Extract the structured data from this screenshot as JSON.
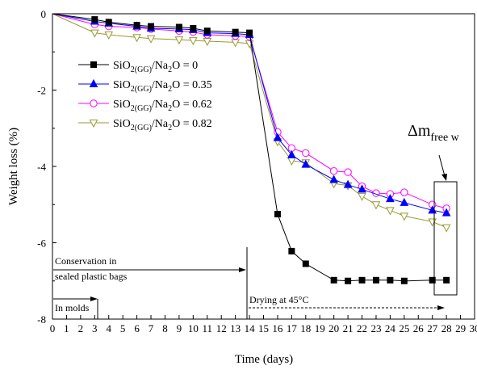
{
  "chart_data": {
    "type": "line",
    "title": "",
    "xlabel": "Time (days)",
    "ylabel": "Weight loss (%)",
    "xlim": [
      0,
      30
    ],
    "ylim": [
      -8,
      0
    ],
    "x_ticks": [
      "0",
      "1",
      "2",
      "3",
      "4",
      "5",
      "6",
      "7",
      "8",
      "9",
      "10",
      "11",
      "12",
      "13",
      "14",
      "15",
      "16",
      "17",
      "18",
      "19",
      "20",
      "21",
      "22",
      "23",
      "24",
      "25",
      "26",
      "27",
      "28",
      "29",
      "30"
    ],
    "y_ticks": [
      "0",
      "-2",
      "-4",
      "-6",
      "-8"
    ],
    "legend_position": "top-left",
    "series": [
      {
        "label_main": "SiO",
        "label_sub1": "2(GG)",
        "label_mid": "/Na",
        "label_sub2": "2",
        "label_end": "O = 0",
        "color": "#000000",
        "marker": "square-filled",
        "x": [
          0,
          3,
          4,
          6,
          7,
          9,
          10,
          11,
          13,
          14,
          16,
          17,
          18,
          20,
          21,
          22,
          23,
          24,
          25,
          27,
          28
        ],
        "y": [
          0,
          -0.15,
          -0.22,
          -0.3,
          -0.33,
          -0.35,
          -0.38,
          -0.45,
          -0.48,
          -0.5,
          -5.25,
          -6.22,
          -6.55,
          -6.98,
          -7.0,
          -6.98,
          -6.98,
          -6.98,
          -7.0,
          -6.98,
          -6.98
        ]
      },
      {
        "label_main": "SiO",
        "label_sub1": "2(GG)",
        "label_mid": "/Na",
        "label_sub2": "2",
        "label_end": "O = 0.35",
        "color": "#0000ff",
        "marker": "triangle-up-filled",
        "x": [
          0,
          3,
          4,
          6,
          7,
          9,
          10,
          11,
          13,
          14,
          16,
          17,
          18,
          20,
          21,
          22,
          24,
          25,
          27,
          28
        ],
        "y": [
          0,
          -0.2,
          -0.25,
          -0.33,
          -0.38,
          -0.4,
          -0.42,
          -0.5,
          -0.52,
          -0.55,
          -3.25,
          -3.7,
          -3.95,
          -4.35,
          -4.48,
          -4.6,
          -4.85,
          -4.95,
          -5.15,
          -5.22
        ]
      },
      {
        "label_main": "SiO",
        "label_sub1": "2(GG)",
        "label_mid": "/Na",
        "label_sub2": "2",
        "label_end": "O = 0.62",
        "color": "#ff00ff",
        "marker": "circle-open",
        "x": [
          0,
          3,
          4,
          6,
          7,
          9,
          10,
          11,
          13,
          14,
          16,
          17,
          18,
          20,
          21,
          22,
          23,
          24,
          25,
          27,
          28
        ],
        "y": [
          0,
          -0.28,
          -0.33,
          -0.36,
          -0.4,
          -0.45,
          -0.48,
          -0.55,
          -0.58,
          -0.6,
          -3.1,
          -3.52,
          -3.65,
          -4.12,
          -4.15,
          -4.52,
          -4.7,
          -4.72,
          -4.68,
          -5.0,
          -5.1
        ]
      },
      {
        "label_main": "SiO",
        "label_sub1": "2(GG)",
        "label_mid": "/Na",
        "label_sub2": "2",
        "label_end": "O = 0.82",
        "color": "#999933",
        "marker": "triangle-down-open",
        "x": [
          0,
          3,
          4,
          6,
          7,
          9,
          10,
          11,
          13,
          14,
          16,
          17,
          18,
          20,
          21,
          22,
          23,
          24,
          25,
          27,
          28
        ],
        "y": [
          0,
          -0.5,
          -0.55,
          -0.62,
          -0.65,
          -0.68,
          -0.7,
          -0.72,
          -0.75,
          -0.78,
          -3.35,
          -3.85,
          -3.9,
          -4.45,
          -4.5,
          -4.78,
          -5.0,
          -5.15,
          -5.3,
          -5.45,
          -5.6
        ]
      }
    ],
    "annotations": {
      "delta_main": "Δm",
      "delta_sub": "free w",
      "conservation_line1": "Conservation in",
      "conservation_line2": "sealed plastic bags",
      "in_molds": "In molds",
      "drying": "Drying at 45°C"
    }
  }
}
